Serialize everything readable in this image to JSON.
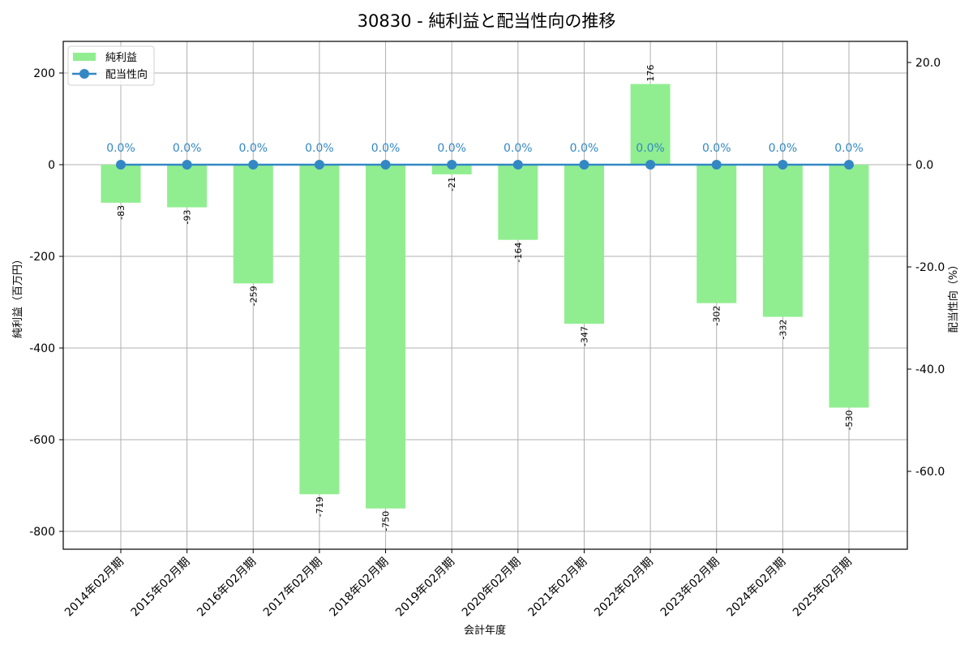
{
  "title": "30830 - 純利益と配当性向の推移",
  "colors": {
    "bar": "#90ee90",
    "line": "#3388c4",
    "grid": "#b0b0b0",
    "axis": "#000000"
  },
  "legend": {
    "bar_label": "純利益",
    "line_label": "配当性向"
  },
  "axes": {
    "xlabel": "会計年度",
    "ylabel_left": "純利益（百万円）",
    "ylabel_right": "配当性向（%）",
    "left_ticks": [
      "200",
      "0",
      "-200",
      "-400",
      "-600",
      "-800"
    ],
    "right_ticks": [
      "20.0",
      "0.0",
      "-20.0",
      "-40.0",
      "-60.0"
    ]
  },
  "chart_data": {
    "type": "bar+line",
    "title": "30830 - 純利益と配当性向の推移",
    "xlabel": "会計年度",
    "categories": [
      "2014年02月期",
      "2015年02月期",
      "2016年02月期",
      "2017年02月期",
      "2018年02月期",
      "2019年02月期",
      "2020年02月期",
      "2021年02月期",
      "2022年02月期",
      "2023年02月期",
      "2024年02月期",
      "2025年02月期"
    ],
    "series": [
      {
        "name": "純利益",
        "type": "bar",
        "axis": "left",
        "ylabel": "純利益（百万円）",
        "values": [
          -83,
          -93,
          -259,
          -719,
          -750,
          -21,
          -164,
          -347,
          176,
          -302,
          -332,
          -530
        ],
        "labels": [
          "-83",
          "-93",
          "-259",
          "-719",
          "-750",
          "-21",
          "-164",
          "-347",
          "176",
          "-302",
          "-332",
          "-530"
        ]
      },
      {
        "name": "配当性向",
        "type": "line",
        "axis": "right",
        "ylabel": "配当性向（%）",
        "values": [
          0.0,
          0.0,
          0.0,
          0.0,
          0.0,
          0.0,
          0.0,
          0.0,
          0.0,
          0.0,
          0.0,
          0.0
        ],
        "labels": [
          "0.0%",
          "0.0%",
          "0.0%",
          "0.0%",
          "0.0%",
          "0.0%",
          "0.0%",
          "0.0%",
          "0.0%",
          "0.0%",
          "0.0%",
          "0.0%"
        ]
      }
    ],
    "ylim_left": [
      -840,
      265
    ],
    "ylim_right": [
      -75,
      24
    ],
    "left_ticks": [
      200,
      0,
      -200,
      -400,
      -600,
      -800
    ],
    "right_ticks": [
      20.0,
      0.0,
      -20.0,
      -40.0,
      -60.0
    ],
    "grid": true,
    "legend_position": "upper left"
  }
}
